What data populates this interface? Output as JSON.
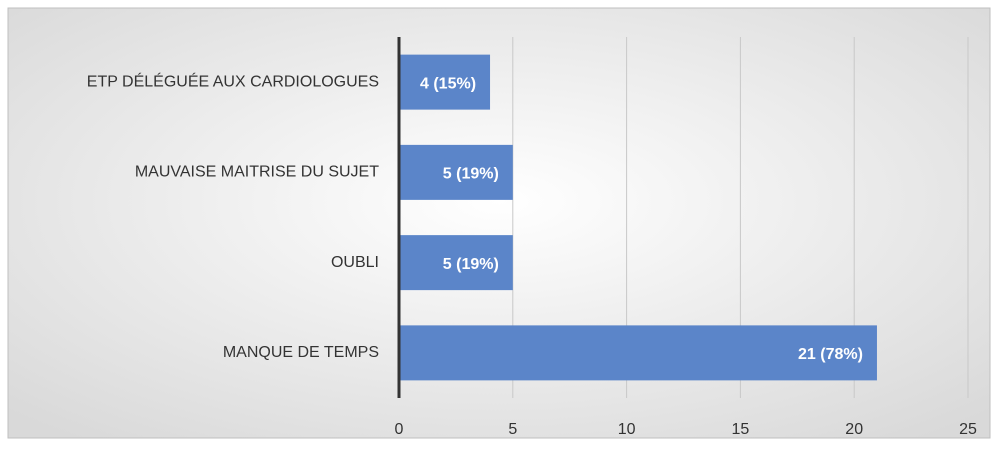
{
  "chart_data": {
    "type": "bar",
    "orientation": "horizontal",
    "categories": [
      "ETP DÉLÉGUÉE AUX CARDIOLOGUES",
      "MAUVAISE MAITRISE DU SUJET",
      "OUBLI",
      "MANQUE DE TEMPS"
    ],
    "values": [
      4,
      5,
      5,
      21
    ],
    "value_labels": [
      "4 (15%)",
      "5 (19%)",
      "5 (19%)",
      "21 (78%)"
    ],
    "color": "#5b85c9",
    "xlim": [
      0,
      25
    ],
    "xticks": [
      0,
      5,
      10,
      15,
      20,
      25
    ],
    "grid": true
  }
}
